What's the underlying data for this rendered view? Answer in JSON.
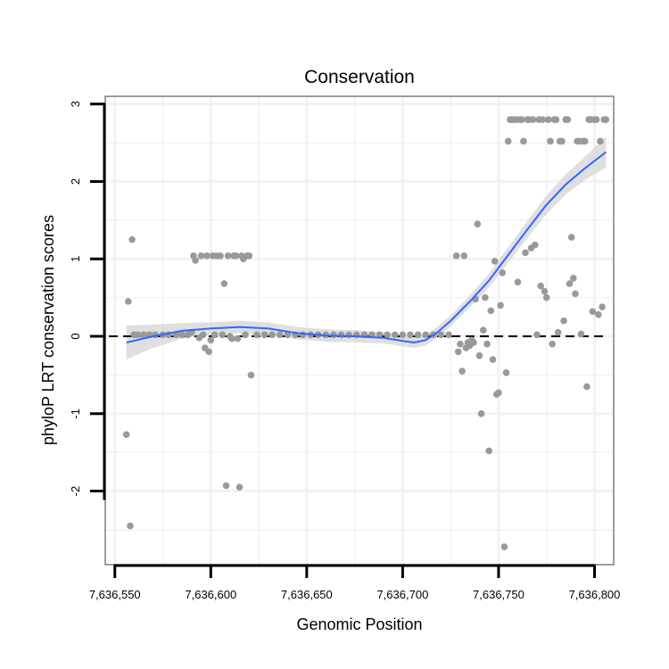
{
  "chart_data": {
    "type": "scatter",
    "title": "Conservation",
    "xlabel": "Genomic Position",
    "ylabel": "phyloP LRT conservation scores",
    "xlim": [
      7636545,
      7636810
    ],
    "ylim": [
      -2.95,
      3.1
    ],
    "x_ticks": [
      7636550,
      7636600,
      7636650,
      7636700,
      7636750,
      7636800
    ],
    "x_tick_labels": [
      "7,636,550",
      "7,636,600",
      "7,636,650",
      "7,636,700",
      "7,636,750",
      "7,636,800"
    ],
    "y_ticks": [
      -2,
      -1,
      0,
      1,
      2,
      3
    ],
    "y_tick_labels": [
      "-2",
      "-1",
      "0",
      "1",
      "2",
      "3"
    ],
    "reference_line": {
      "y": 0,
      "style": "dashed"
    },
    "grid": true,
    "colors": {
      "points": "#999999",
      "smooth_line": "#3366ff",
      "confidence_band": "#d9d9d9",
      "grid": "#f2f2f2",
      "panel_border": "#7f7f7f"
    },
    "points": [
      [
        7636556,
        -1.27
      ],
      [
        7636557,
        0.45
      ],
      [
        7636558,
        -2.45
      ],
      [
        7636559,
        1.25
      ],
      [
        7636560,
        0.02
      ],
      [
        7636562,
        0.02
      ],
      [
        7636565,
        0.02
      ],
      [
        7636568,
        0.02
      ],
      [
        7636571,
        0.02
      ],
      [
        7636575,
        0.02
      ],
      [
        7636578,
        0.02
      ],
      [
        7636582,
        0.02
      ],
      [
        7636585,
        0.02
      ],
      [
        7636588,
        0.02
      ],
      [
        7636590,
        0.05
      ],
      [
        7636591,
        1.04
      ],
      [
        7636592,
        0.98
      ],
      [
        7636594,
        -0.02
      ],
      [
        7636595,
        1.04
      ],
      [
        7636596,
        0.02
      ],
      [
        7636597,
        -0.15
      ],
      [
        7636598,
        1.04
      ],
      [
        7636599,
        -0.2
      ],
      [
        7636600,
        -0.05
      ],
      [
        7636601,
        1.04
      ],
      [
        7636602,
        0.02
      ],
      [
        7636603,
        1.04
      ],
      [
        7636605,
        1.04
      ],
      [
        7636606,
        0.02
      ],
      [
        7636607,
        0.68
      ],
      [
        7636608,
        -1.93
      ],
      [
        7636609,
        1.04
      ],
      [
        7636610,
        0.0
      ],
      [
        7636611,
        -0.03
      ],
      [
        7636612,
        1.04
      ],
      [
        7636613,
        1.04
      ],
      [
        7636614,
        -0.03
      ],
      [
        7636615,
        -1.95
      ],
      [
        7636616,
        1.04
      ],
      [
        7636617,
        1.0
      ],
      [
        7636618,
        0.02
      ],
      [
        7636619,
        1.04
      ],
      [
        7636620,
        1.04
      ],
      [
        7636621,
        -0.5
      ],
      [
        7636624,
        0.02
      ],
      [
        7636628,
        0.02
      ],
      [
        7636632,
        0.02
      ],
      [
        7636636,
        0.02
      ],
      [
        7636640,
        0.02
      ],
      [
        7636644,
        0.02
      ],
      [
        7636648,
        0.02
      ],
      [
        7636652,
        0.02
      ],
      [
        7636656,
        0.02
      ],
      [
        7636660,
        0.02
      ],
      [
        7636664,
        0.02
      ],
      [
        7636668,
        0.02
      ],
      [
        7636672,
        0.02
      ],
      [
        7636676,
        0.02
      ],
      [
        7636680,
        0.02
      ],
      [
        7636684,
        0.02
      ],
      [
        7636688,
        0.02
      ],
      [
        7636692,
        0.02
      ],
      [
        7636696,
        0.02
      ],
      [
        7636700,
        0.02
      ],
      [
        7636704,
        0.02
      ],
      [
        7636708,
        0.02
      ],
      [
        7636712,
        0.02
      ],
      [
        7636716,
        0.02
      ],
      [
        7636720,
        0.02
      ],
      [
        7636724,
        0.02
      ],
      [
        7636728,
        1.04
      ],
      [
        7636729,
        -0.2
      ],
      [
        7636730,
        -0.1
      ],
      [
        7636731,
        -0.45
      ],
      [
        7636732,
        1.04
      ],
      [
        7636733,
        -0.15
      ],
      [
        7636734,
        -0.08
      ],
      [
        7636735,
        -0.12
      ],
      [
        7636736,
        -0.05
      ],
      [
        7636737,
        -0.08
      ],
      [
        7636738,
        0.48
      ],
      [
        7636739,
        1.45
      ],
      [
        7636740,
        -0.25
      ],
      [
        7636741,
        -1.0
      ],
      [
        7636742,
        0.08
      ],
      [
        7636743,
        0.5
      ],
      [
        7636744,
        -0.1
      ],
      [
        7636745,
        -1.48
      ],
      [
        7636746,
        0.33
      ],
      [
        7636747,
        -0.3
      ],
      [
        7636748,
        0.97
      ],
      [
        7636749,
        -0.75
      ],
      [
        7636750,
        -0.73
      ],
      [
        7636751,
        0.4
      ],
      [
        7636752,
        0.82
      ],
      [
        7636753,
        -2.72
      ],
      [
        7636754,
        -0.47
      ],
      [
        7636755,
        2.52
      ],
      [
        7636756,
        2.8
      ],
      [
        7636757,
        2.8
      ],
      [
        7636758,
        2.8
      ],
      [
        7636759,
        2.8
      ],
      [
        7636760,
        0.7
      ],
      [
        7636761,
        2.8
      ],
      [
        7636762,
        2.8
      ],
      [
        7636763,
        2.52
      ],
      [
        7636764,
        1.08
      ],
      [
        7636765,
        2.8
      ],
      [
        7636766,
        2.8
      ],
      [
        7636767,
        1.14
      ],
      [
        7636768,
        2.8
      ],
      [
        7636769,
        1.18
      ],
      [
        7636770,
        0.02
      ],
      [
        7636771,
        2.8
      ],
      [
        7636772,
        0.65
      ],
      [
        7636773,
        2.8
      ],
      [
        7636774,
        0.58
      ],
      [
        7636775,
        0.5
      ],
      [
        7636776,
        2.8
      ],
      [
        7636777,
        2.52
      ],
      [
        7636778,
        -0.1
      ],
      [
        7636779,
        2.8
      ],
      [
        7636780,
        2.8
      ],
      [
        7636781,
        0.05
      ],
      [
        7636782,
        2.52
      ],
      [
        7636783,
        2.52
      ],
      [
        7636784,
        0.2
      ],
      [
        7636785,
        2.8
      ],
      [
        7636786,
        2.8
      ],
      [
        7636787,
        0.68
      ],
      [
        7636788,
        1.28
      ],
      [
        7636789,
        0.75
      ],
      [
        7636790,
        0.55
      ],
      [
        7636791,
        2.52
      ],
      [
        7636792,
        2.52
      ],
      [
        7636793,
        0.03
      ],
      [
        7636794,
        2.52
      ],
      [
        7636795,
        2.52
      ],
      [
        7636796,
        -0.65
      ],
      [
        7636797,
        2.8
      ],
      [
        7636798,
        2.8
      ],
      [
        7636799,
        0.32
      ],
      [
        7636800,
        2.8
      ],
      [
        7636801,
        2.8
      ],
      [
        7636802,
        0.28
      ],
      [
        7636803,
        2.52
      ],
      [
        7636804,
        0.38
      ],
      [
        7636805,
        2.8
      ],
      [
        7636806,
        2.8
      ]
    ],
    "smooth": [
      [
        7636556,
        -0.08
      ],
      [
        7636570,
        0.0
      ],
      [
        7636585,
        0.07
      ],
      [
        7636600,
        0.1
      ],
      [
        7636615,
        0.12
      ],
      [
        7636630,
        0.1
      ],
      [
        7636645,
        0.04
      ],
      [
        7636660,
        0.01
      ],
      [
        7636675,
        0.0
      ],
      [
        7636690,
        -0.02
      ],
      [
        7636700,
        -0.06
      ],
      [
        7636706,
        -0.08
      ],
      [
        7636712,
        -0.05
      ],
      [
        7636718,
        0.05
      ],
      [
        7636725,
        0.2
      ],
      [
        7636735,
        0.45
      ],
      [
        7636745,
        0.72
      ],
      [
        7636755,
        1.05
      ],
      [
        7636765,
        1.38
      ],
      [
        7636775,
        1.7
      ],
      [
        7636785,
        1.96
      ],
      [
        7636795,
        2.17
      ],
      [
        7636806,
        2.38
      ]
    ],
    "band_half_width": [
      0.22,
      0.15,
      0.1,
      0.08,
      0.08,
      0.08,
      0.08,
      0.08,
      0.08,
      0.07,
      0.07,
      0.07,
      0.07,
      0.07,
      0.07,
      0.08,
      0.09,
      0.1,
      0.11,
      0.12,
      0.13,
      0.15,
      0.2
    ]
  }
}
